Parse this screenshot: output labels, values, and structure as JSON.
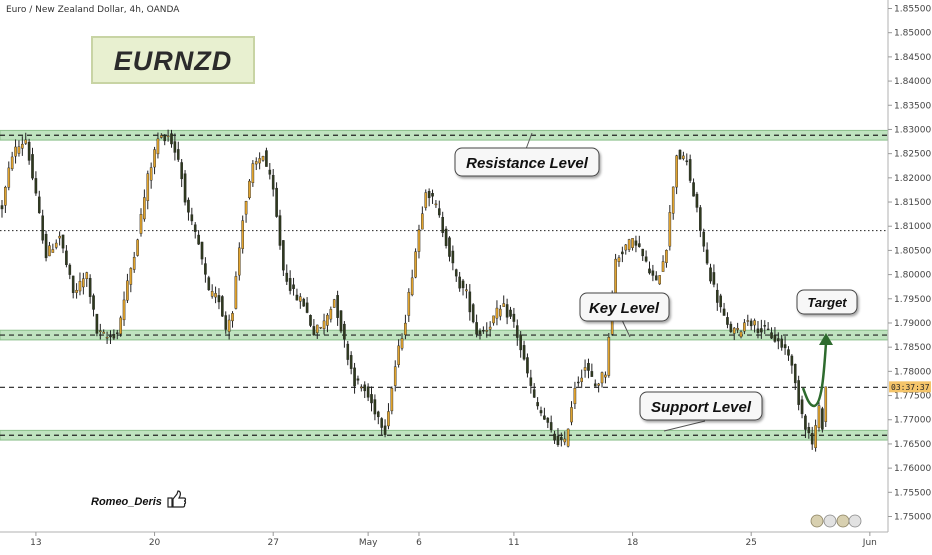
{
  "chart_data": {
    "type": "candlestick",
    "symbol_label": "Euro / New Zealand Dollar, 4h, OANDA",
    "title": "EURNZD",
    "y_range": [
      1.745,
      1.855
    ],
    "y_ticks": [
      "1.85500",
      "1.85000",
      "1.84500",
      "1.84000",
      "1.83500",
      "1.83000",
      "1.82500",
      "1.82000",
      "1.81500",
      "1.81000",
      "1.80500",
      "1.80000",
      "1.79500",
      "1.79000",
      "1.78500",
      "1.78000",
      "1.77500",
      "1.77000",
      "1.76500",
      "1.76000",
      "1.75500",
      "1.75000"
    ],
    "x_ticks": [
      {
        "label": "13",
        "index": 10
      },
      {
        "label": "20",
        "index": 45
      },
      {
        "label": "27",
        "index": 80
      },
      {
        "label": "May",
        "index": 108
      },
      {
        "label": "6",
        "index": 123
      },
      {
        "label": "11",
        "index": 151
      },
      {
        "label": "18",
        "index": 186
      },
      {
        "label": "25",
        "index": 221
      },
      {
        "label": "Jun",
        "index": 256
      }
    ],
    "zones": [
      {
        "name": "Resistance Level",
        "low": 1.8278,
        "high": 1.8298
      },
      {
        "name": "Key Level",
        "low": 1.7865,
        "high": 1.7885
      },
      {
        "name": "Support Level",
        "low": 1.7658,
        "high": 1.7678
      }
    ],
    "dotted_level": 1.8091,
    "dashed_levels": [
      1.7767,
      1.7875,
      1.7668,
      1.8288
    ],
    "current_price": 1.7768,
    "price_tag": "03:37:37",
    "anchors": [
      [
        0,
        1.814
      ],
      [
        3,
        1.825
      ],
      [
        7,
        1.828
      ],
      [
        10,
        1.816
      ],
      [
        13,
        1.804
      ],
      [
        17,
        1.808
      ],
      [
        21,
        1.796
      ],
      [
        25,
        1.8
      ],
      [
        28,
        1.788
      ],
      [
        31,
        1.787
      ],
      [
        34,
        1.788
      ],
      [
        37,
        1.798
      ],
      [
        40,
        1.808
      ],
      [
        43,
        1.82
      ],
      [
        46,
        1.828
      ],
      [
        49,
        1.829
      ],
      [
        52,
        1.824
      ],
      [
        55,
        1.812
      ],
      [
        58,
        1.806
      ],
      [
        61,
        1.796
      ],
      [
        64,
        1.795
      ],
      [
        66,
        1.789
      ],
      [
        68,
        1.793
      ],
      [
        71,
        1.812
      ],
      [
        74,
        1.822
      ],
      [
        77,
        1.825
      ],
      [
        80,
        1.817
      ],
      [
        83,
        1.801
      ],
      [
        86,
        1.796
      ],
      [
        89,
        1.794
      ],
      [
        92,
        1.788
      ],
      [
        95,
        1.79
      ],
      [
        98,
        1.795
      ],
      [
        101,
        1.786
      ],
      [
        104,
        1.778
      ],
      [
        107,
        1.776
      ],
      [
        110,
        1.772
      ],
      [
        113,
        1.768
      ],
      [
        116,
        1.781
      ],
      [
        119,
        1.791
      ],
      [
        122,
        1.805
      ],
      [
        125,
        1.818
      ],
      [
        128,
        1.814
      ],
      [
        131,
        1.807
      ],
      [
        134,
        1.799
      ],
      [
        137,
        1.796
      ],
      [
        140,
        1.788
      ],
      [
        143,
        1.789
      ],
      [
        146,
        1.792
      ],
      [
        148,
        1.793
      ],
      [
        151,
        1.79
      ],
      [
        154,
        1.782
      ],
      [
        157,
        1.774
      ],
      [
        160,
        1.77
      ],
      [
        163,
        1.766
      ],
      [
        166,
        1.765
      ],
      [
        169,
        1.777
      ],
      [
        172,
        1.781
      ],
      [
        175,
        1.777
      ],
      [
        178,
        1.78
      ],
      [
        181,
        1.803
      ],
      [
        184,
        1.806
      ],
      [
        187,
        1.807
      ],
      [
        190,
        1.802
      ],
      [
        193,
        1.798
      ],
      [
        196,
        1.806
      ],
      [
        199,
        1.825
      ],
      [
        202,
        1.823
      ],
      [
        205,
        1.813
      ],
      [
        208,
        1.802
      ],
      [
        211,
        1.795
      ],
      [
        214,
        1.789
      ],
      [
        217,
        1.788
      ],
      [
        220,
        1.791
      ],
      [
        223,
        1.789
      ],
      [
        226,
        1.788
      ],
      [
        229,
        1.786
      ],
      [
        232,
        1.784
      ],
      [
        235,
        1.774
      ],
      [
        237,
        1.769
      ],
      [
        239,
        1.765
      ],
      [
        241,
        1.772
      ],
      [
        242,
        1.769
      ],
      [
        243,
        1.776
      ]
    ],
    "callouts": [
      {
        "label": "Resistance Level"
      },
      {
        "label": "Key Level"
      },
      {
        "label": "Support Level"
      },
      {
        "label": "Target"
      }
    ],
    "author": "Romeo_Deris",
    "colors": {
      "bull": "#e0a32e",
      "bear": "#2f3a1e",
      "zone_fill": "#bfe3bf",
      "zone_border": "#8cc08c",
      "arrow": "#2e6b2e",
      "title_bg": "#e8f0d0",
      "title_border": "#c8d4a4",
      "price_tag_bg": "#f5c56a"
    }
  }
}
